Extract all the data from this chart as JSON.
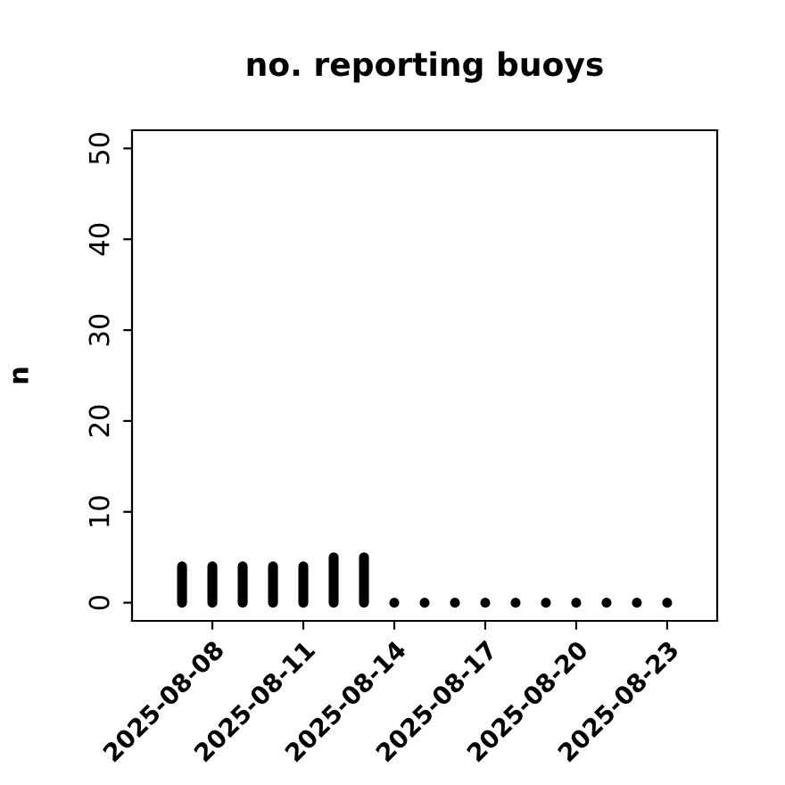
{
  "chart_data": {
    "type": "bar",
    "title": "no. reporting buoys",
    "ylabel": "n",
    "x": [
      "2025-08-07",
      "2025-08-08",
      "2025-08-09",
      "2025-08-10",
      "2025-08-11",
      "2025-08-12",
      "2025-08-13",
      "2025-08-14",
      "2025-08-15",
      "2025-08-16",
      "2025-08-17",
      "2025-08-18",
      "2025-08-19",
      "2025-08-20",
      "2025-08-21",
      "2025-08-22",
      "2025-08-23"
    ],
    "values": [
      4,
      4,
      4,
      4,
      4,
      5,
      5,
      0,
      0,
      0,
      0,
      0,
      0,
      0,
      0,
      0,
      0
    ],
    "color": "#000000",
    "xlim": [
      "2025-08-05T08:24",
      "2025-08-24T15:36"
    ],
    "xticks": [
      {
        "value": "2025-08-08",
        "label": "2025-08-08"
      },
      {
        "value": "2025-08-11",
        "label": "2025-08-11"
      },
      {
        "value": "2025-08-14",
        "label": "2025-08-14"
      },
      {
        "value": "2025-08-17",
        "label": "2025-08-17"
      },
      {
        "value": "2025-08-20",
        "label": "2025-08-20"
      },
      {
        "value": "2025-08-23",
        "label": "2025-08-23"
      }
    ],
    "ylim": [
      -2,
      52
    ],
    "yticks": [
      0,
      10,
      20,
      30,
      40,
      50
    ],
    "grid": false,
    "legend": false
  }
}
